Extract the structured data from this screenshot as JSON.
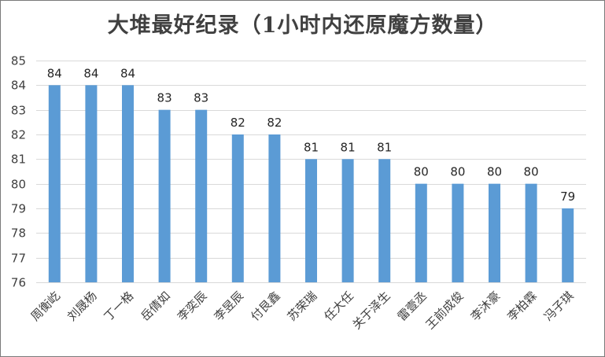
{
  "chart_data": {
    "type": "bar",
    "title": "大堆最好纪录（1小时内还原魔方数量）",
    "categories": [
      "周衡屹",
      "刘晟杨",
      "丁一格",
      "岳倩如",
      "李奕辰",
      "李昱辰",
      "付艮鑫",
      "苏荣瑞",
      "任大任",
      "关于泽生",
      "雷壹丞",
      "王前成俊",
      "李沐豪",
      "李柏霖",
      "冯子琪"
    ],
    "values": [
      84,
      84,
      84,
      83,
      83,
      82,
      82,
      81,
      81,
      81,
      80,
      80,
      80,
      80,
      79
    ],
    "xlabel": "",
    "ylabel": "",
    "ylim": [
      76,
      85
    ],
    "yticks": [
      76,
      77,
      78,
      79,
      80,
      81,
      82,
      83,
      84,
      85
    ],
    "grid": true,
    "legend": "none",
    "bar_color": "#5b9bd5",
    "grid_color": "#d9d9d9"
  }
}
